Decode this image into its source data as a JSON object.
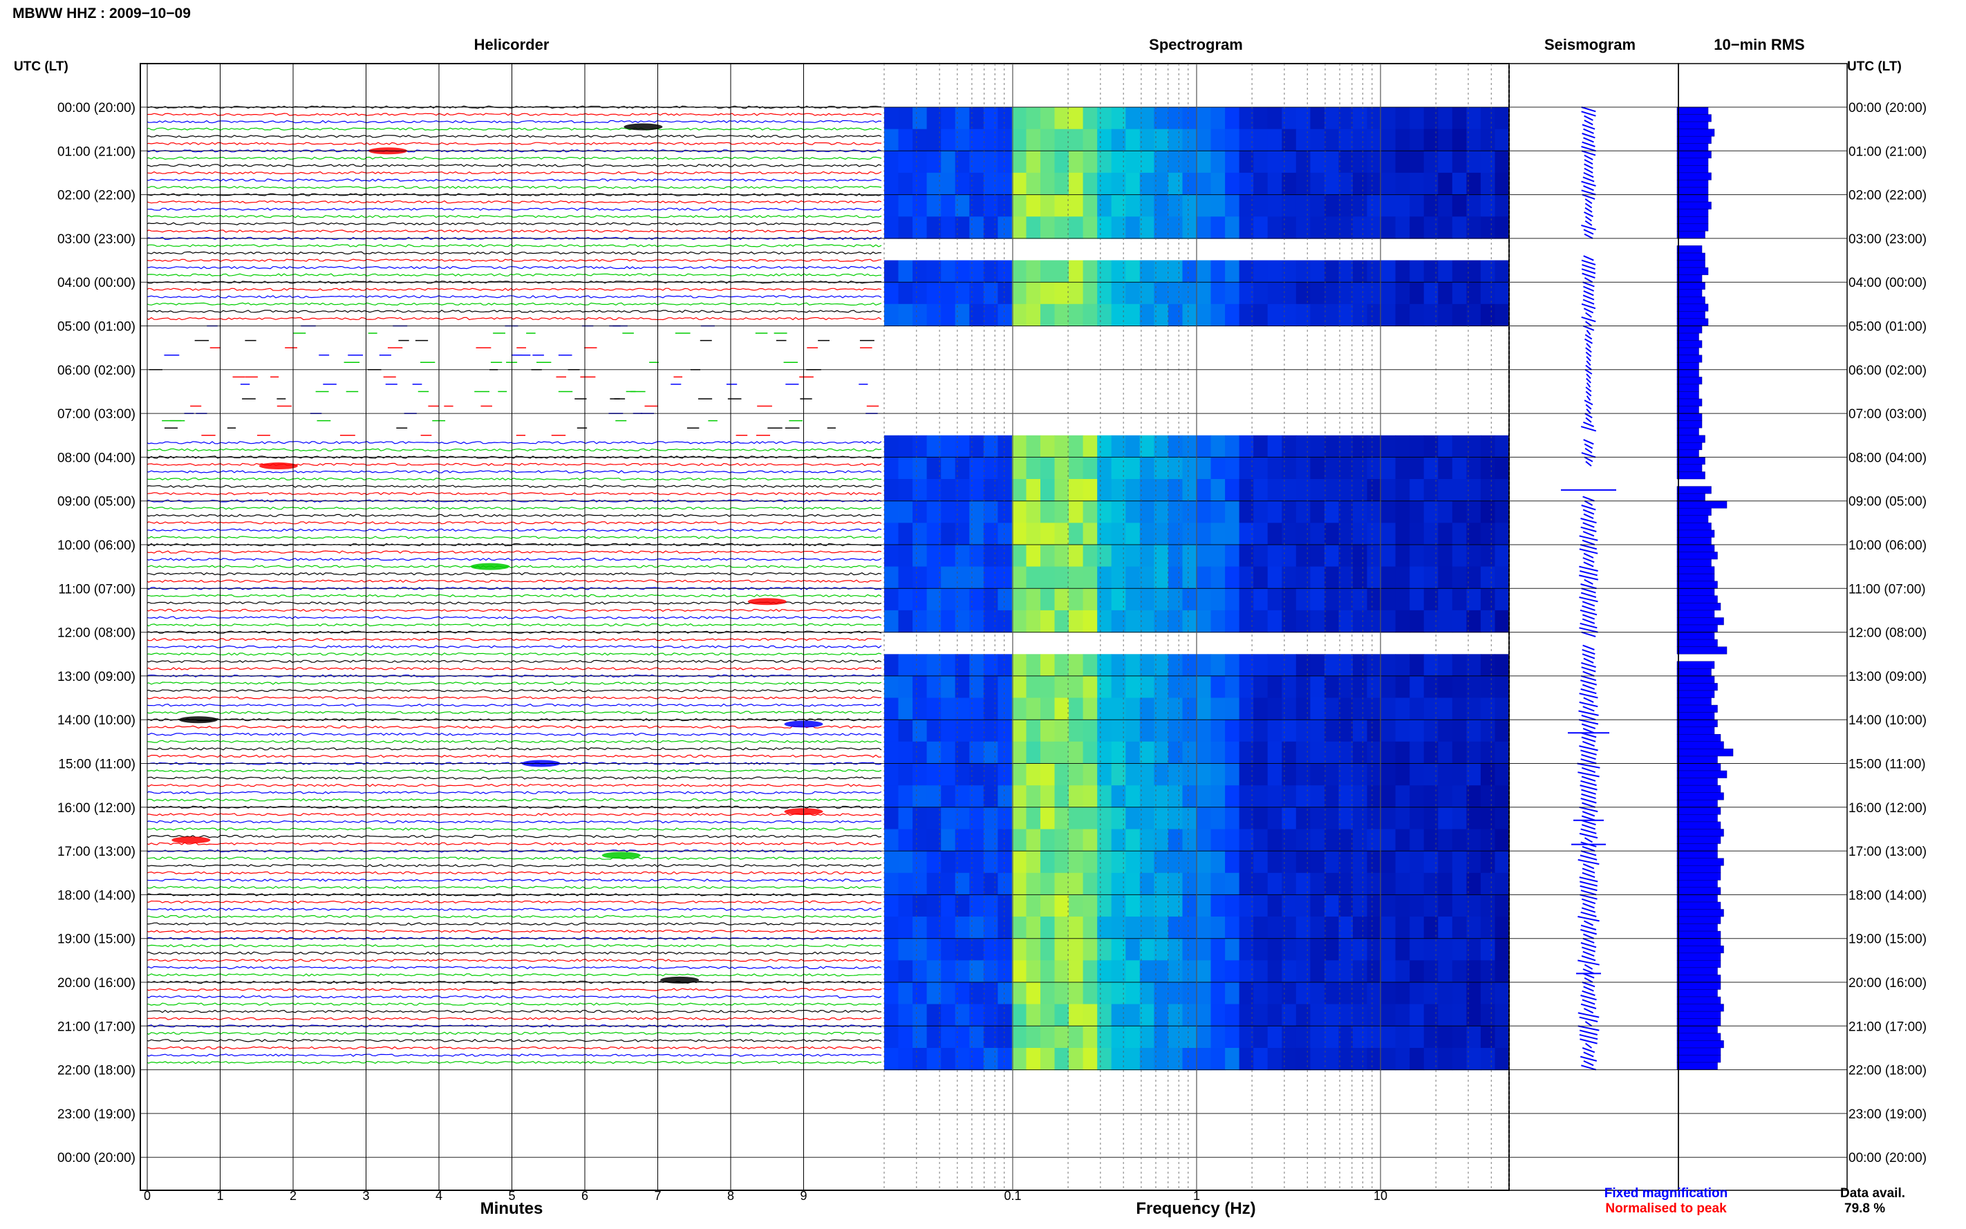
{
  "header": {
    "title": "MBWW HHZ : 2009−10−09"
  },
  "panels": {
    "helicorder": "Helicorder",
    "spectrogram": "Spectrogram",
    "seismogram": "Seismogram",
    "rms": "10−min RMS"
  },
  "axes": {
    "left_header": "UTC (LT)",
    "right_header": "UTC (LT)",
    "helicorder_xlabel": "Minutes",
    "spectrogram_xlabel": "Frequency (Hz)"
  },
  "legend": {
    "fixed": "Fixed magnification",
    "normalised": "Normalised to peak",
    "fixed_color": "#0000ff",
    "normalised_color": "#ff0000"
  },
  "data_avail": {
    "label": "Data avail.",
    "value": "79.8 %"
  },
  "colors": {
    "trace_cycle": [
      "#000000",
      "#ff0000",
      "#0000ff",
      "#00cc00"
    ],
    "spectrogram_low": "#00008b",
    "spectrogram_high": "#ffff00",
    "rms_bar": "#0000ff"
  },
  "chart_data": [
    {
      "type": "line",
      "name": "Helicorder",
      "title": "Helicorder",
      "xlabel": "Minutes",
      "x_ticks": [
        0,
        1,
        2,
        3,
        4,
        5,
        6,
        7,
        8,
        9
      ],
      "xlim": [
        0,
        10
      ],
      "y_tick_labels": [
        "00:00 (20:00)",
        "01:00 (21:00)",
        "02:00 (22:00)",
        "03:00 (23:00)",
        "04:00 (00:00)",
        "05:00 (01:00)",
        "06:00 (02:00)",
        "07:00 (03:00)",
        "08:00 (04:00)",
        "09:00 (05:00)",
        "10:00 (06:00)",
        "11:00 (07:00)",
        "12:00 (08:00)",
        "13:00 (09:00)",
        "14:00 (10:00)",
        "15:00 (11:00)",
        "16:00 (12:00)",
        "17:00 (13:00)",
        "18:00 (14:00)",
        "19:00 (15:00)",
        "20:00 (16:00)",
        "21:00 (17:00)",
        "22:00 (18:00)",
        "23:00 (19:00)",
        "00:00 (20:00)"
      ],
      "rows_per_hour": 6,
      "hours_with_data": 22
    },
    {
      "type": "heatmap",
      "name": "Spectrogram",
      "title": "Spectrogram",
      "xlabel": "Frequency (Hz)",
      "x_scale": "log",
      "x_ticks": [
        0.1,
        1,
        10
      ],
      "xlim": [
        0.02,
        50
      ],
      "gaps_utc": [
        "03:00-03:20",
        "05:00-07:10",
        "07:20-07:30",
        "08:10-08:30",
        "08:35-08:50",
        "12:00-12:15",
        "16:40",
        "19:30"
      ]
    },
    {
      "type": "line",
      "name": "Seismogram",
      "title": "Seismogram",
      "legend": [
        "Fixed magnification",
        "Normalised to peak"
      ]
    },
    {
      "type": "bar",
      "name": "10-min RMS",
      "title": "10−min RMS",
      "orientation": "horizontal",
      "bin_minutes": 10,
      "start_utc": "00:00",
      "relative_values": [
        0.5,
        0.55,
        0.5,
        0.6,
        0.55,
        0.5,
        0.55,
        0.5,
        0.5,
        0.55,
        0.5,
        0.5,
        0.5,
        0.55,
        0.5,
        0.5,
        0.5,
        0.45,
        0,
        0.4,
        0.45,
        0.45,
        0.5,
        0.4,
        0.45,
        0.4,
        0.45,
        0.5,
        0.45,
        0.5,
        0.4,
        0.35,
        0.4,
        0.35,
        0.4,
        0.35,
        0.35,
        0.4,
        0.35,
        0.35,
        0.4,
        0.35,
        0.4,
        0.4,
        0.35,
        0.45,
        0.4,
        0.35,
        0.45,
        0.4,
        0.45,
        0,
        0.55,
        0.45,
        0.8,
        0.55,
        0.5,
        0.55,
        0.6,
        0.55,
        0.6,
        0.65,
        0.55,
        0.6,
        0.6,
        0.65,
        0.6,
        0.65,
        0.7,
        0.6,
        0.75,
        0.65,
        0.6,
        0.65,
        0.8,
        0,
        0.6,
        0.55,
        0.6,
        0.65,
        0.6,
        0.55,
        0.65,
        0.6,
        0.65,
        0.6,
        0.7,
        0.75,
        0.9,
        0.65,
        0.7,
        0.8,
        0.65,
        0.7,
        0.75,
        0.65,
        0.7,
        0.65,
        0.7,
        0.75,
        0.7,
        0.65,
        0.65,
        0.75,
        0.7,
        0.7,
        0.65,
        0.7,
        0.65,
        0.7,
        0.75,
        0.7,
        0.65,
        0.7,
        0.7,
        0.75,
        0.7,
        0.7,
        0.65,
        0.7,
        0.7,
        0.65,
        0.7,
        0.75,
        0.7,
        0.7,
        0.65,
        0.7,
        0.75,
        0.7,
        0.7,
        0.65
      ]
    }
  ]
}
